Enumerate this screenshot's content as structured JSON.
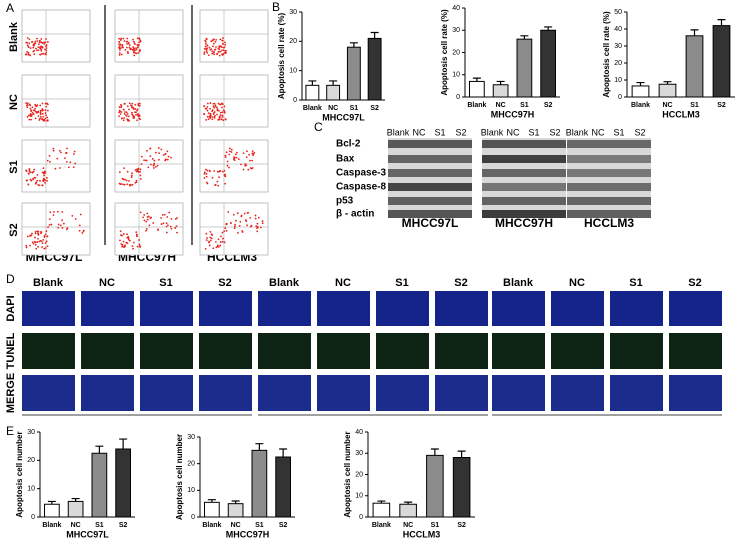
{
  "panels": {
    "A": {
      "label": "A",
      "rows": [
        "Blank",
        "NC",
        "S1",
        "S2"
      ],
      "columns": [
        "MHCC97L",
        "MHCC97H",
        "HCCLM3"
      ]
    },
    "B": {
      "label": "B"
    },
    "C": {
      "label": "C",
      "lanes": [
        "Blank",
        "NC",
        "S1",
        "S2"
      ],
      "proteins": [
        "Bcl-2",
        "Bax",
        "Caspase-3",
        "Caspase-8",
        "p53",
        "β - actin"
      ],
      "groups": [
        "MHCC97L",
        "MHCC97H",
        "HCCLM3"
      ]
    },
    "D": {
      "label": "D",
      "columns": [
        "Blank",
        "NC",
        "S1",
        "S2"
      ],
      "rows": [
        "DAPI",
        "TUNEL",
        "MERGE"
      ]
    },
    "E": {
      "label": "E"
    }
  },
  "chart_data": [
    {
      "type": "bar",
      "title": "MHCC97L",
      "ylabel": "Apoptosis cell rate (%)",
      "categories": [
        "Blank",
        "NC",
        "S1",
        "S2"
      ],
      "values": [
        5,
        5,
        18,
        21
      ],
      "errors": [
        1.5,
        1.5,
        1.5,
        2
      ],
      "colors": [
        "#ffffff",
        "#d9d9d9",
        "#8c8c8c",
        "#333333"
      ],
      "ylim": [
        0,
        30
      ],
      "yticks": [
        0,
        10,
        20,
        30
      ]
    },
    {
      "type": "bar",
      "title": "MHCC97H",
      "ylabel": "Apoptosis cell rate (%)",
      "categories": [
        "Blank",
        "NC",
        "S1",
        "S2"
      ],
      "values": [
        7,
        5.5,
        26,
        30
      ],
      "errors": [
        1.5,
        1.5,
        1.5,
        1.5
      ],
      "colors": [
        "#ffffff",
        "#d9d9d9",
        "#8c8c8c",
        "#333333"
      ],
      "ylim": [
        0,
        40
      ],
      "yticks": [
        0,
        10,
        20,
        30,
        40
      ]
    },
    {
      "type": "bar",
      "title": "HCCLM3",
      "ylabel": "Apoptosis cell rate (%)",
      "categories": [
        "Blank",
        "NC",
        "S1",
        "S2"
      ],
      "values": [
        6.5,
        7.5,
        36,
        42
      ],
      "errors": [
        2,
        1.5,
        3.5,
        3.5
      ],
      "colors": [
        "#ffffff",
        "#d9d9d9",
        "#8c8c8c",
        "#333333"
      ],
      "ylim": [
        0,
        50
      ],
      "yticks": [
        0,
        10,
        20,
        30,
        40,
        50
      ]
    },
    {
      "type": "bar",
      "title": "MHCC97L",
      "ylabel": "Apoptosis cell number",
      "categories": [
        "Blank",
        "NC",
        "S1",
        "S2"
      ],
      "values": [
        4.5,
        5.5,
        22.5,
        24
      ],
      "errors": [
        1,
        1,
        2.5,
        3.5
      ],
      "colors": [
        "#ffffff",
        "#d9d9d9",
        "#8c8c8c",
        "#333333"
      ],
      "ylim": [
        0,
        30
      ],
      "yticks": [
        0,
        10,
        20,
        30
      ]
    },
    {
      "type": "bar",
      "title": "MHCC97H",
      "ylabel": "Apoptosis cell number",
      "categories": [
        "Blank",
        "NC",
        "S1",
        "S2"
      ],
      "values": [
        5.5,
        5,
        25,
        22.5
      ],
      "errors": [
        1,
        1,
        2.5,
        3
      ],
      "colors": [
        "#ffffff",
        "#d9d9d9",
        "#8c8c8c",
        "#333333"
      ],
      "ylim": [
        0,
        30
      ],
      "yticks": [
        0,
        10,
        20,
        30
      ]
    },
    {
      "type": "bar",
      "title": "HCCLM3",
      "ylabel": "Apoptosis cell number",
      "categories": [
        "Blank",
        "NC",
        "S1",
        "S2"
      ],
      "values": [
        6.5,
        6,
        29,
        28
      ],
      "errors": [
        1,
        1,
        3,
        3
      ],
      "colors": [
        "#ffffff",
        "#d9d9d9",
        "#8c8c8c",
        "#333333"
      ],
      "ylim": [
        0,
        40
      ],
      "yticks": [
        0,
        10,
        20,
        30,
        40
      ]
    }
  ]
}
